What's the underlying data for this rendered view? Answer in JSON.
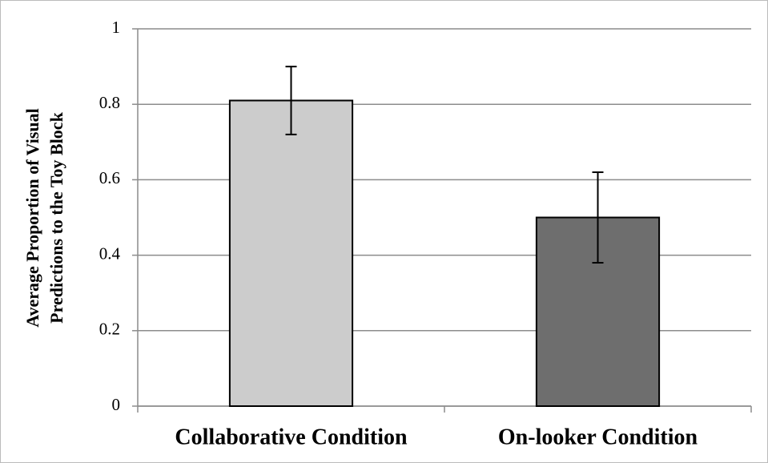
{
  "chart_data": {
    "type": "bar",
    "ylabel": [
      "Average Proportion of Visual",
      "Predictions to the Toy Block"
    ],
    "categories": [
      "Collaborative Condition",
      "On-looker Condition"
    ],
    "values": [
      0.81,
      0.5
    ],
    "errors": [
      0.09,
      0.12
    ],
    "colors": [
      "#cccccc",
      "#6e6e6e"
    ],
    "ylim": [
      0,
      1
    ],
    "yticks": [
      0,
      0.2,
      0.4,
      0.6,
      0.8,
      1
    ],
    "grid": true
  }
}
